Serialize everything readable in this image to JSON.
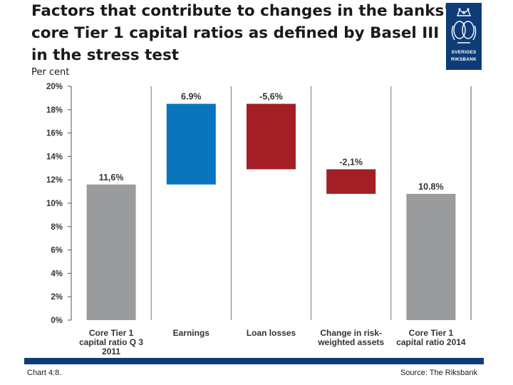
{
  "header": {
    "title_lines": [
      "Factors that contribute to changes in the banks'",
      "core Tier 1 capital ratios as defined by Basel III",
      "in the stress test"
    ],
    "unit_label": "Per cent"
  },
  "logo": {
    "line1": "SVERIGES",
    "line2": "RIKSBANK",
    "color": "#0f3b78"
  },
  "footer": {
    "chart_number": "Chart 4:8.",
    "source": "Source: The Riksbank"
  },
  "colors": {
    "total": "#9a9b9d",
    "increase": "#0a74bd",
    "decrease": "#a41e26",
    "accent": "#0f3b78"
  },
  "chart_data": {
    "type": "bar",
    "subtype": "waterfall",
    "categories": [
      [
        "Core Tier 1",
        "capital ratio Q 3",
        "2011"
      ],
      [
        "Earnings"
      ],
      [
        "Loan losses"
      ],
      [
        "Change in risk-",
        "weighted assets"
      ],
      [
        "Core Tier 1",
        "capital ratio 2014"
      ]
    ],
    "bars": [
      {
        "kind": "total",
        "start": 0,
        "end": 11.6,
        "label": "11,6%"
      },
      {
        "kind": "increase",
        "start": 11.6,
        "end": 18.5,
        "label": "6.9%"
      },
      {
        "kind": "decrease",
        "start": 18.5,
        "end": 12.9,
        "label": "-5,6%"
      },
      {
        "kind": "decrease",
        "start": 12.9,
        "end": 10.8,
        "label": "-2,1%"
      },
      {
        "kind": "total",
        "start": 0,
        "end": 10.8,
        "label": "10.8%"
      }
    ],
    "yticks": [
      "0%",
      "2%",
      "4%",
      "6%",
      "8%",
      "10%",
      "12%",
      "14%",
      "16%",
      "18%",
      "20%"
    ],
    "ylim": [
      0,
      20
    ],
    "grid": false
  }
}
